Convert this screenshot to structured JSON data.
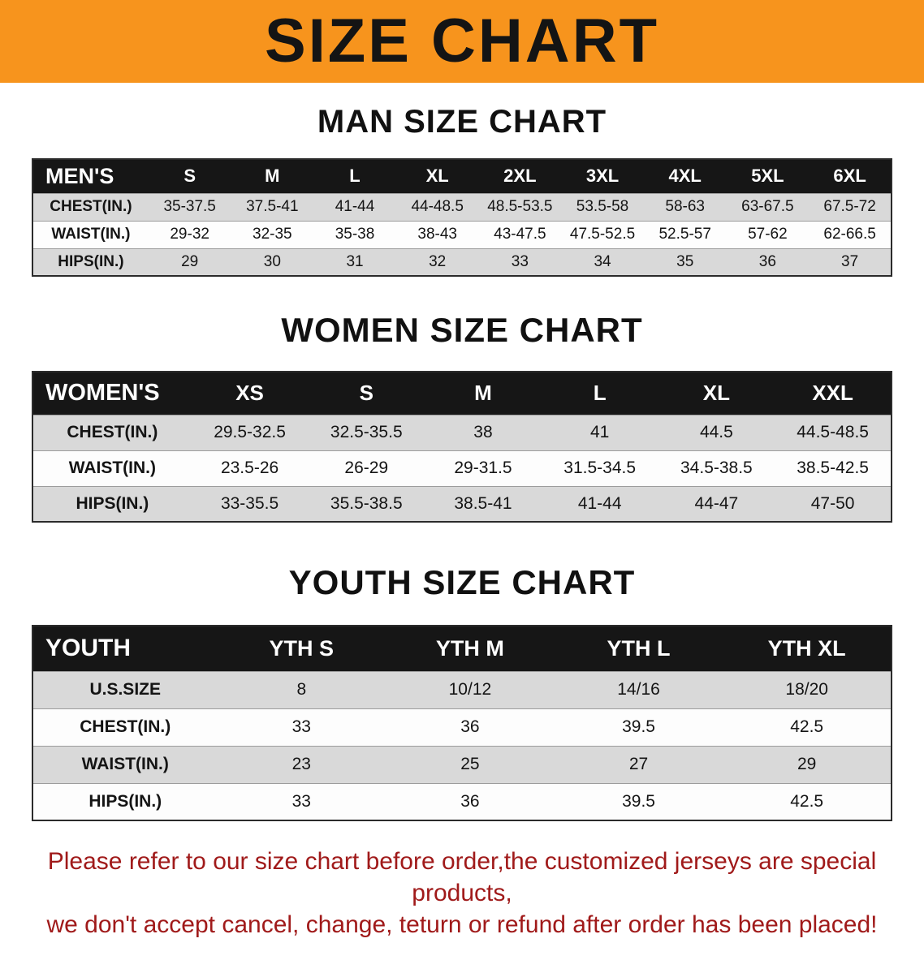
{
  "banner": {
    "title": "SIZE CHART"
  },
  "chart_data": [
    {
      "type": "table",
      "title": "MAN SIZE CHART",
      "columns": [
        "MEN'S",
        "S",
        "M",
        "L",
        "XL",
        "2XL",
        "3XL",
        "4XL",
        "5XL",
        "6XL"
      ],
      "rows": [
        [
          "CHEST(IN.)",
          "35-37.5",
          "37.5-41",
          "41-44",
          "44-48.5",
          "48.5-53.5",
          "53.5-58",
          "58-63",
          "63-67.5",
          "67.5-72"
        ],
        [
          "WAIST(IN.)",
          "29-32",
          "32-35",
          "35-38",
          "38-43",
          "43-47.5",
          "47.5-52.5",
          "52.5-57",
          "57-62",
          "62-66.5"
        ],
        [
          "HIPS(IN.)",
          "29",
          "30",
          "31",
          "32",
          "33",
          "34",
          "35",
          "36",
          "37"
        ]
      ]
    },
    {
      "type": "table",
      "title": "WOMEN SIZE CHART",
      "columns": [
        "WOMEN'S",
        "XS",
        "S",
        "M",
        "L",
        "XL",
        "XXL"
      ],
      "rows": [
        [
          "CHEST(IN.)",
          "29.5-32.5",
          "32.5-35.5",
          "38",
          "41",
          "44.5",
          "44.5-48.5"
        ],
        [
          "WAIST(IN.)",
          "23.5-26",
          "26-29",
          "29-31.5",
          "31.5-34.5",
          "34.5-38.5",
          "38.5-42.5"
        ],
        [
          "HIPS(IN.)",
          "33-35.5",
          "35.5-38.5",
          "38.5-41",
          "41-44",
          "44-47",
          "47-50"
        ]
      ]
    },
    {
      "type": "table",
      "title": "YOUTH SIZE CHART",
      "columns": [
        "YOUTH",
        "YTH S",
        "YTH M",
        "YTH L",
        "YTH XL"
      ],
      "rows": [
        [
          "U.S.SIZE",
          "8",
          "10/12",
          "14/16",
          "18/20"
        ],
        [
          "CHEST(IN.)",
          "33",
          "36",
          "39.5",
          "42.5"
        ],
        [
          "WAIST(IN.)",
          "23",
          "25",
          "27",
          "29"
        ],
        [
          "HIPS(IN.)",
          "33",
          "36",
          "39.5",
          "42.5"
        ]
      ]
    }
  ],
  "note": {
    "lines": [
      "Please refer to our size chart before order,the customized jerseys are special products,",
      "we don't accept cancel, change, teturn or refund after order has been placed!"
    ]
  },
  "colors": {
    "banner_bg": "#f7941d",
    "header_bg": "#161616",
    "row_alt": "#d9d9d9",
    "note_text": "#a01a1a"
  }
}
